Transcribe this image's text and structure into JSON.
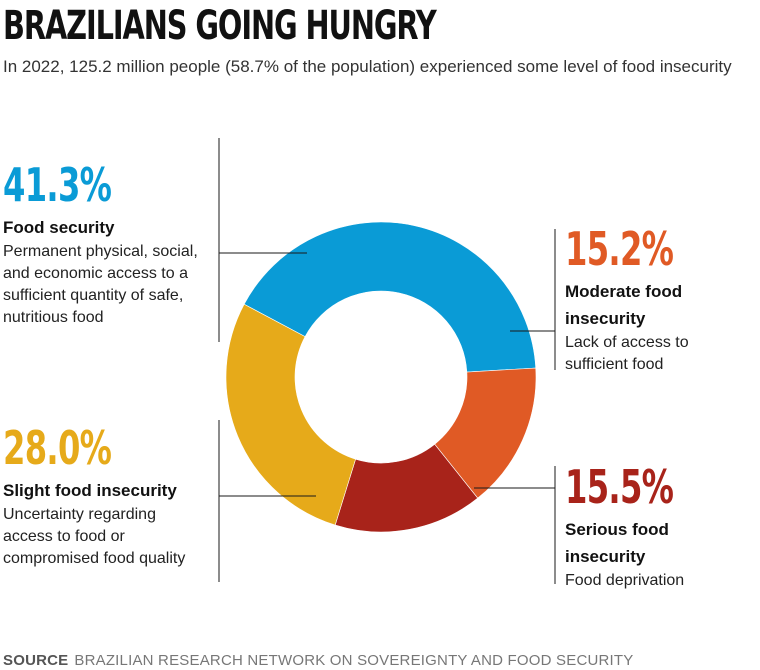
{
  "header": {
    "title": "BRAZILIANS GOING HUNGRY",
    "subtitle": "In 2022, 125.2 million people (58.7% of the population) experienced some level of food insecurity"
  },
  "source": {
    "label": "SOURCE",
    "text": "BRAZILIAN RESEARCH NETWORK ON SOVEREIGNTY AND FOOD SECURITY"
  },
  "chart_data": {
    "type": "pie",
    "title": "BRAZILIANS GOING HUNGRY",
    "donut": true,
    "legend": "callout-labels",
    "slices": [
      {
        "label": "Food security",
        "value": 41.3,
        "value_label": "41.3%",
        "description": "Permanent physical, social, and economic access to a sufficient quantity of safe, nutritious food",
        "color": "#0a9bd6"
      },
      {
        "label": "Moderate food insecurity",
        "value": 15.2,
        "value_label": "15.2%",
        "description": "Lack of access to sufficient food",
        "color": "#e05a25"
      },
      {
        "label": "Serious food insecurity",
        "value": 15.5,
        "value_label": "15.5%",
        "description": "Food deprivation",
        "color": "#a8231a"
      },
      {
        "label": "Slight food insecurity",
        "value": 28.0,
        "value_label": "28.0%",
        "description": "Uncertainty regarding access to food or compromised food quality",
        "color": "#e6aa1a"
      }
    ]
  }
}
